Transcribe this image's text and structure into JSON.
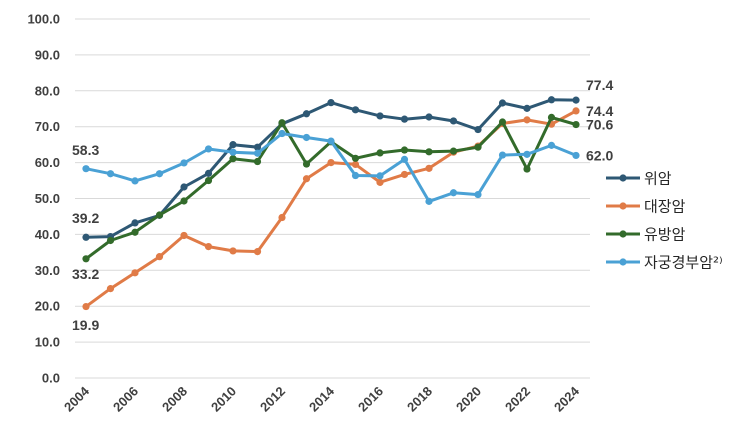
{
  "chart_data": {
    "type": "line",
    "x": [
      "2004",
      "2005",
      "2006",
      "2007",
      "2008",
      "2009",
      "2010",
      "2011",
      "2012",
      "2013",
      "2014",
      "2015",
      "2016",
      "2017",
      "2018",
      "2019",
      "2020",
      "2021",
      "2022",
      "2023",
      "2024"
    ],
    "x_tick_labels": [
      "2004",
      "2006",
      "2008",
      "2010",
      "2012",
      "2014",
      "2016",
      "2018",
      "2020",
      "2022",
      "2024"
    ],
    "y_tick_labels": [
      "0.0",
      "10.0",
      "20.0",
      "30.0",
      "40.0",
      "50.0",
      "60.0",
      "70.0",
      "80.0",
      "90.0",
      "100.0"
    ],
    "ylim": [
      0,
      100
    ],
    "grid": true,
    "legend_position": "right",
    "series": [
      {
        "name": "위암",
        "color": "#2e5874",
        "values": [
          39.2,
          39.4,
          43.2,
          45.3,
          53.2,
          57.0,
          65.0,
          64.3,
          70.8,
          73.6,
          76.7,
          74.7,
          73.0,
          72.1,
          72.7,
          71.6,
          69.2,
          76.6,
          75.1,
          77.5,
          77.4
        ],
        "end_label": "77.4",
        "start_label": "39.2"
      },
      {
        "name": "대장암",
        "color": "#e07b47",
        "values": [
          19.9,
          24.9,
          29.3,
          33.8,
          39.7,
          36.6,
          35.4,
          35.2,
          44.7,
          55.5,
          60.0,
          59.5,
          54.5,
          56.7,
          58.4,
          62.9,
          64.6,
          70.9,
          71.9,
          70.7,
          74.4
        ],
        "end_label": "74.4",
        "start_label": "19.9"
      },
      {
        "name": "유방암",
        "color": "#336b2b",
        "values": [
          33.2,
          38.3,
          40.6,
          45.4,
          49.3,
          55.0,
          61.1,
          60.3,
          71.1,
          59.6,
          65.8,
          61.2,
          62.7,
          63.5,
          63.0,
          63.2,
          64.3,
          71.3,
          58.2,
          72.6,
          70.6
        ],
        "end_label": "70.6",
        "start_label": "33.2"
      },
      {
        "name": "자궁경부암²⁾",
        "color": "#4aa1d5",
        "values": [
          58.3,
          56.9,
          54.9,
          56.9,
          59.9,
          63.8,
          62.9,
          62.6,
          68.1,
          67.0,
          66.0,
          56.4,
          56.3,
          60.9,
          49.2,
          51.6,
          51.1,
          62.1,
          62.3,
          64.8,
          62.0
        ],
        "end_label": "62.0",
        "start_label": "58.3"
      }
    ]
  }
}
